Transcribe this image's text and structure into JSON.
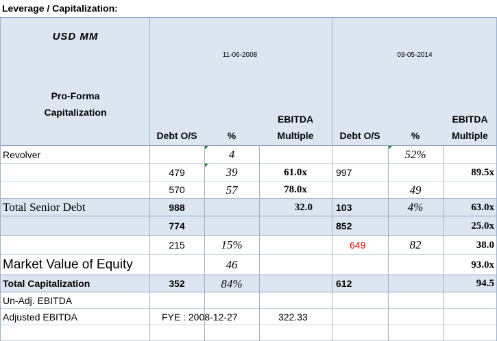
{
  "title": "Leverage / Capitalization:",
  "header": {
    "units": "USD MM",
    "date1": "11-06-2008",
    "date2": "09-05-2014",
    "section": "Pro-Forma Capitalization",
    "col_debt": "Debt O/S",
    "col_pct": "%",
    "col_ebitda": "EBITDA",
    "col_multiple": "Multiple"
  },
  "rows": {
    "r1": {
      "label": "Revolver",
      "pct1": "4",
      "pct2": "52%"
    },
    "r2": {
      "debt1": "479",
      "pct1": "39",
      "mult1": "61.0x",
      "debt2": "997",
      "mult2": "89.5x"
    },
    "r3": {
      "debt1": "570",
      "pct1": "57",
      "mult1": "78.0x",
      "pct2": "49"
    },
    "r4": {
      "label": "Total Senior Debt",
      "debt1": "988",
      "mult1": "32.0",
      "debt2": "103",
      "pct2": "4%",
      "mult2": "63.0x"
    },
    "r5": {
      "debt1": "774",
      "debt2": "852",
      "mult2": "25.0x"
    },
    "r6": {
      "debt1": "215",
      "pct1": "15%",
      "debt2": "649",
      "pct2": "82",
      "mult2": "38.0"
    },
    "r7": {
      "label": "Market Value of Equity",
      "pct1": "46",
      "mult2": "93.0x"
    },
    "r8": {
      "label": "Total Capitalization",
      "debt1": "352",
      "pct1": "84%",
      "debt2": "612",
      "mult2": "94.5"
    },
    "r9": {
      "label": "Un-Adj. EBITDA"
    },
    "r10": {
      "label": "Adjusted EBITDA",
      "fye": "FYE : 2008-12-27",
      "value": "322.33"
    }
  },
  "colors": {
    "header_fill": "#dce6f1",
    "negative_red": "#e00000",
    "comment_marker": "#1e7b1e"
  }
}
